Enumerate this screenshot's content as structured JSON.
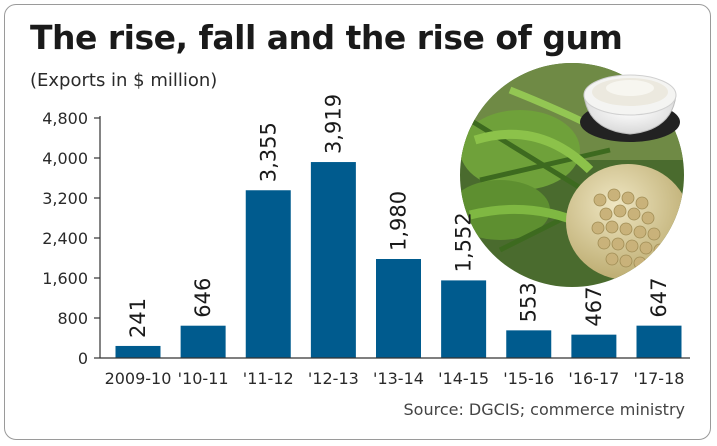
{
  "header": {
    "title": "The rise, fall and the rise of gum",
    "subtitle": "(Exports in $ million)"
  },
  "footer": {
    "source": "Source: DGCIS; commerce ministry"
  },
  "illustration": {
    "icon": "guar-plant-and-gum-powder-image"
  },
  "colors": {
    "bar": "#005b8e",
    "text": "#1a1a1a",
    "axis": "#333333"
  },
  "chart_data": {
    "type": "bar",
    "title": "The rise, fall and the rise of gum",
    "subtitle": "(Exports in $ million)",
    "xlabel": "",
    "ylabel": "",
    "categories": [
      "2009-10",
      "'10-11",
      "'11-12",
      "'12-13",
      "'13-14",
      "'14-15",
      "'15-16",
      "'16-17",
      "'17-18"
    ],
    "values": [
      241,
      646,
      3355,
      3919,
      1980,
      1552,
      553,
      467,
      647
    ],
    "value_labels": [
      "241",
      "646",
      "3,355",
      "3,919",
      "1,980",
      "1,552",
      "553",
      "467",
      "647"
    ],
    "ylim": [
      0,
      4800
    ],
    "yticks": [
      0,
      800,
      1600,
      2400,
      3200,
      4000,
      4800
    ],
    "ytick_labels": [
      "0",
      "800",
      "1,600",
      "2,400",
      "3,200",
      "4,000",
      "4,800"
    ],
    "grid": false,
    "legend": "none"
  }
}
